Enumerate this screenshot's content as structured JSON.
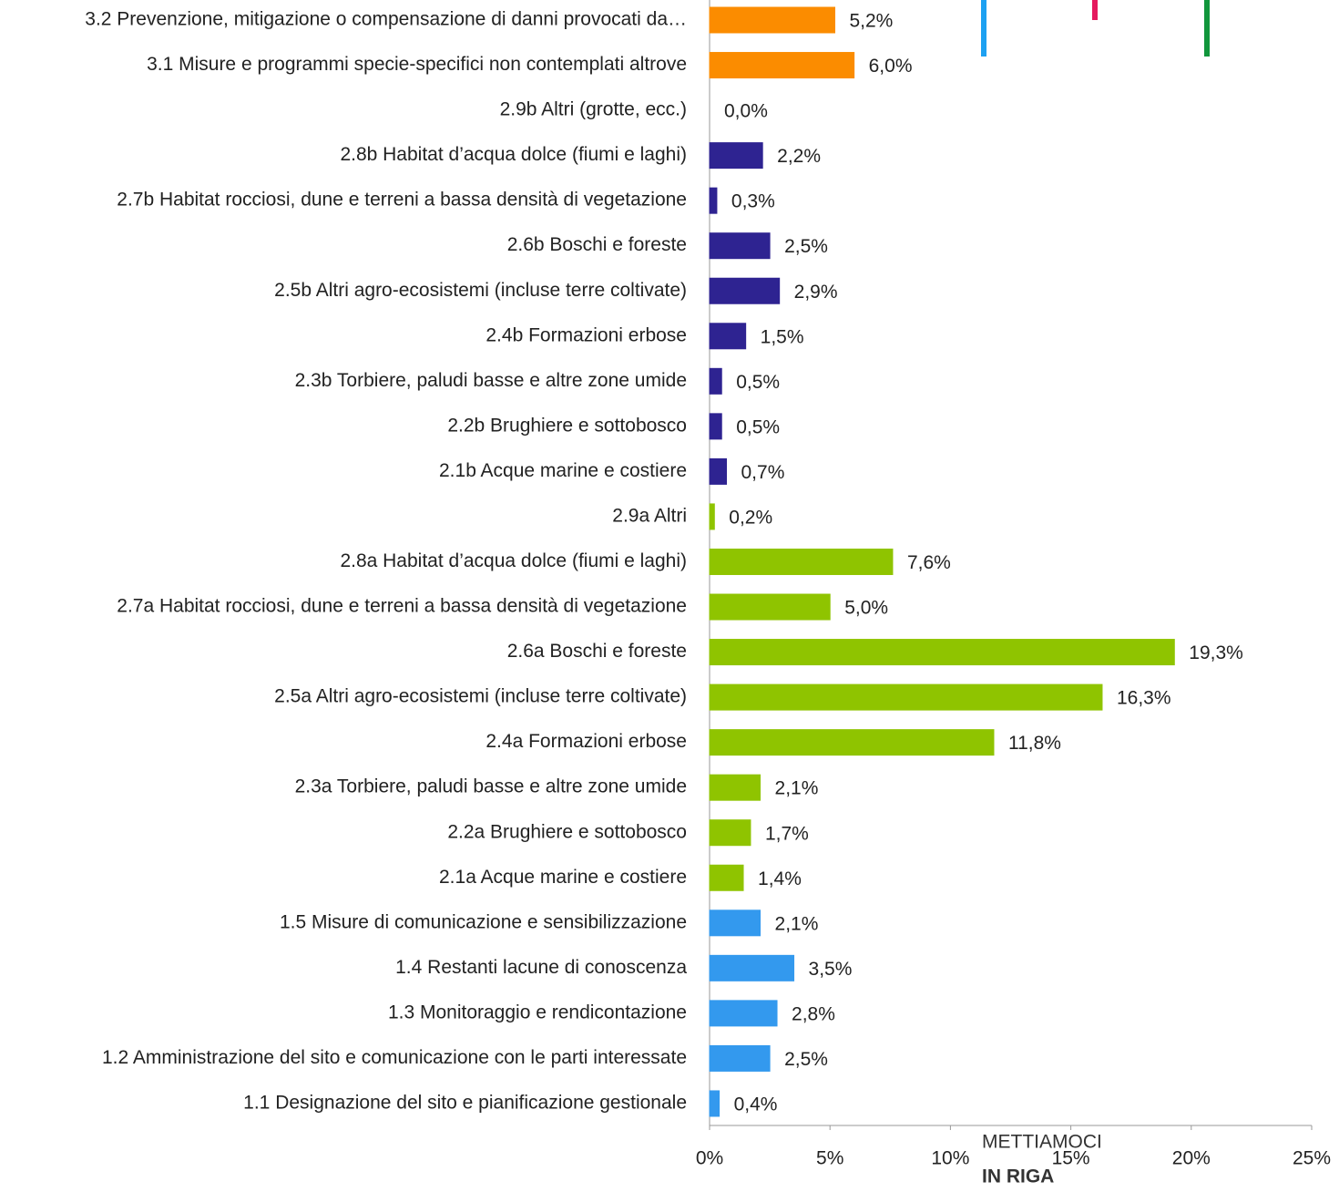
{
  "chart_data": {
    "type": "bar",
    "orientation": "horizontal",
    "categories": [
      "3.2 Prevenzione, mitigazione o compensazione di danni provocati da…",
      "3.1 Misure e programmi specie-specifici non contemplati altrove",
      "2.9b Altri (grotte, ecc.)",
      "2.8b Habitat d’acqua dolce (fiumi e laghi)",
      "2.7b Habitat rocciosi, dune e terreni a bassa densità di vegetazione",
      "2.6b Boschi e foreste",
      "2.5b Altri agro-ecosistemi (incluse terre coltivate)",
      "2.4b Formazioni erbose",
      "2.3b Torbiere, paludi basse e altre zone umide",
      "2.2b Brughiere e sottobosco",
      "2.1b Acque marine e costiere",
      "2.9a Altri",
      "2.8a Habitat d’acqua dolce (fiumi e laghi)",
      "2.7a Habitat rocciosi, dune e terreni a bassa densità di vegetazione",
      "2.6a Boschi e foreste",
      "2.5a Altri agro-ecosistemi (incluse terre coltivate)",
      "2.4a Formazioni erbose",
      "2.3a Torbiere, paludi basse e altre zone umide",
      "2.2a Brughiere e sottobosco",
      "2.1a Acque marine e costiere",
      "1.5 Misure di comunicazione e sensibilizzazione",
      "1.4 Restanti lacune di conoscenza",
      "1.3 Monitoraggio e rendicontazione",
      "1.2 Amministrazione del sito e comunicazione con le parti interessate",
      "1.1 Designazione del sito e pianificazione gestionale"
    ],
    "values": [
      5.2,
      6.0,
      0.0,
      2.2,
      0.3,
      2.5,
      2.9,
      1.5,
      0.5,
      0.5,
      0.7,
      0.2,
      7.6,
      5.0,
      19.3,
      16.3,
      11.8,
      2.1,
      1.7,
      1.4,
      2.1,
      3.5,
      2.8,
      2.5,
      0.4
    ],
    "value_labels": [
      "5,2%",
      "6,0%",
      "0,0%",
      "2,2%",
      "0,3%",
      "2,5%",
      "2,9%",
      "1,5%",
      "0,5%",
      "0,5%",
      "0,7%",
      "0,2%",
      "7,6%",
      "5,0%",
      "19,3%",
      "16,3%",
      "11,8%",
      "2,1%",
      "1,7%",
      "1,4%",
      "2,1%",
      "3,5%",
      "2,8%",
      "2,5%",
      "0,4%"
    ],
    "colors": [
      "#fb8c00",
      "#fb8c00",
      "#8fc400",
      "#2e2391",
      "#2e2391",
      "#2e2391",
      "#2e2391",
      "#2e2391",
      "#2e2391",
      "#2e2391",
      "#2e2391",
      "#8fc400",
      "#8fc400",
      "#8fc400",
      "#8fc400",
      "#8fc400",
      "#8fc400",
      "#8fc400",
      "#8fc400",
      "#8fc400",
      "#3399ee",
      "#3399ee",
      "#3399ee",
      "#3399ee",
      "#3399ee"
    ],
    "xlim": [
      0,
      25
    ],
    "xticks": [
      {
        "value": 0,
        "label": "0%"
      },
      {
        "value": 5,
        "label": "5%"
      },
      {
        "value": 10,
        "label": "10%"
      },
      {
        "value": 15,
        "label": "15%"
      },
      {
        "value": 20,
        "label": "20%"
      },
      {
        "value": 25,
        "label": "25%"
      }
    ],
    "logo": [
      "METTIAMOCI",
      "IN RIGA"
    ]
  }
}
